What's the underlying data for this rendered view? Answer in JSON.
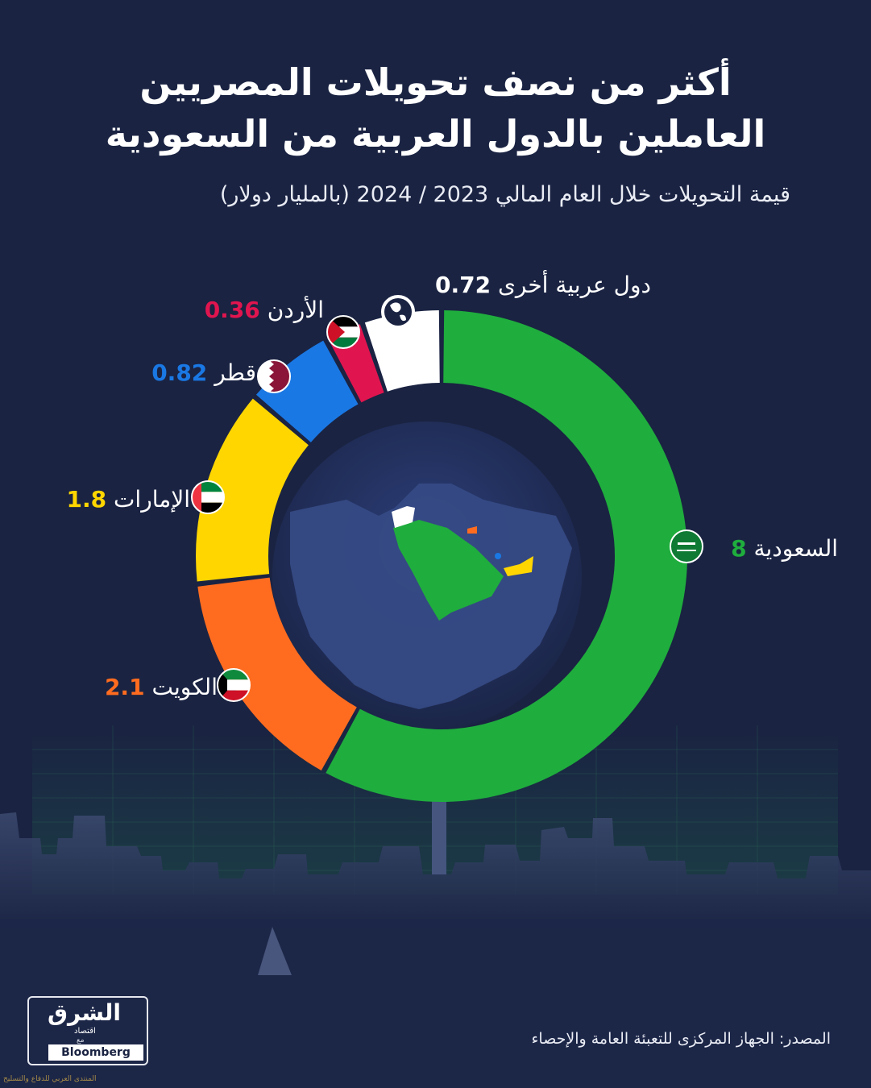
{
  "title_lines": [
    "أكثر من نصف تحويلات المصريين",
    "العاملين بالدول العربية من السعودية"
  ],
  "subtitle": "قيمة التحويلات خلال العام المالي 2023 / 2024 (بالمليار دولار)",
  "source": "المصدر: الجهاز المركزى للتعبئة العامة والإحصاء",
  "logo": {
    "main": "الشرق",
    "sub": "اقتصاد",
    "with": "مع",
    "partner": "Bloomberg"
  },
  "watermark": "المنتدى العربي للدفاع والتسليح",
  "colors": {
    "background": "#1a2342",
    "saudi": "#1fad3d",
    "kuwait": "#ff6c1f",
    "uae": "#ffd600",
    "qatar": "#1a78e4",
    "jordan": "#e0154f",
    "other": "#ffffff"
  },
  "chart_data": {
    "type": "pie",
    "title": "أكثر من نصف تحويلات المصريين العاملين بالدول العربية من السعودية",
    "subtitle": "قيمة التحويلات خلال العام المالي 2023 / 2024 (بالمليار دولار)",
    "unit": "مليار دولار",
    "style": "donut",
    "slices": [
      {
        "label": "السعودية",
        "value": 8,
        "value_text": "8",
        "color": "#1fad3d",
        "icon": "saudi-flag-icon"
      },
      {
        "label": "الكويت",
        "value": 2.1,
        "value_text": "2.1",
        "color": "#ff6c1f",
        "icon": "kuwait-flag-icon"
      },
      {
        "label": "الإمارات",
        "value": 1.8,
        "value_text": "1.8",
        "color": "#ffd600",
        "icon": "uae-flag-icon"
      },
      {
        "label": "قطر",
        "value": 0.82,
        "value_text": "0.82",
        "color": "#1a78e4",
        "icon": "qatar-flag-icon"
      },
      {
        "label": "الأردن",
        "value": 0.36,
        "value_text": "0.36",
        "color": "#e0154f",
        "icon": "jordan-flag-icon"
      },
      {
        "label": "دول عربية أخرى",
        "value": 0.72,
        "value_text": "0.72",
        "color": "#ffffff",
        "icon": "globe-icon"
      }
    ]
  }
}
